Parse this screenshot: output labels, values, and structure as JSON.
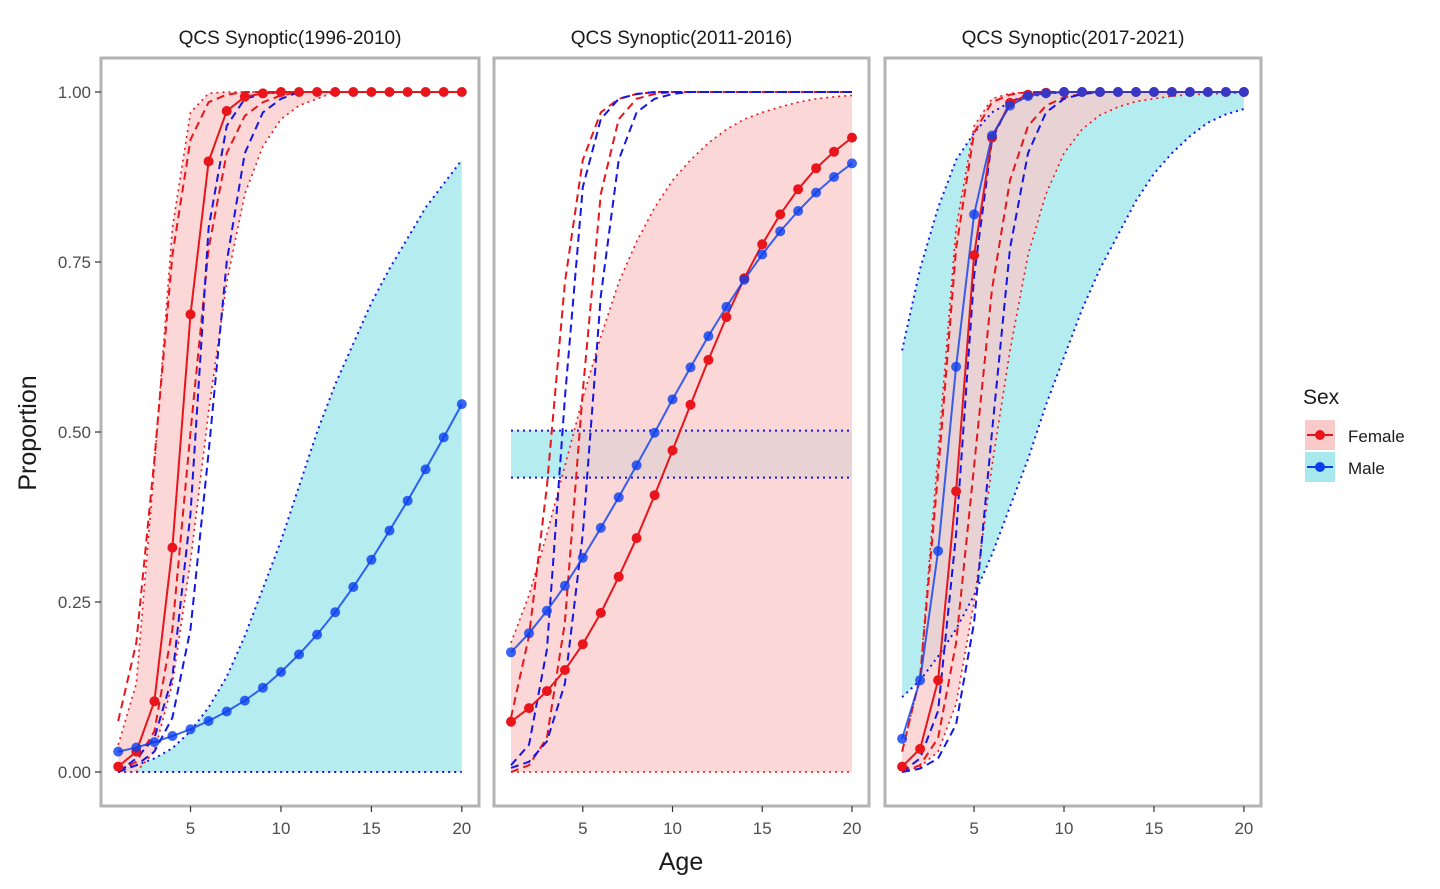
{
  "chart_data": {
    "type": "line",
    "xlabel": "Age",
    "ylabel": "Proportion",
    "xlim": [
      1,
      20
    ],
    "ylim": [
      0,
      1
    ],
    "x_ticks": [
      5,
      10,
      15,
      20
    ],
    "y_ticks": [
      0.0,
      0.25,
      0.5,
      0.75,
      1.0
    ],
    "y_tick_labels": [
      "0.00",
      "0.25",
      "0.50",
      "0.75",
      "1.00"
    ],
    "grid": false,
    "legend": {
      "title": "Sex",
      "position": "right",
      "entries": [
        {
          "label": "Female",
          "line_color": "#e8161c",
          "fill_color": "#f8c8c8"
        },
        {
          "label": "Male",
          "line_color": "#0a3ff0",
          "fill_color": "#a6e6ea"
        }
      ]
    },
    "colors": {
      "female_line": "#e8161c",
      "female_dash": "#e8161c",
      "female_fill": "#f9caca",
      "male_line": "#0a3ff0",
      "male_dash": "#1515e6",
      "male_fill": "#a8e9ed",
      "overlap_fill": "#b3c8c8",
      "panel_border": "#b3b3b3"
    },
    "panels": [
      {
        "title": "QCS Synoptic(1996-2010)",
        "x": [
          1,
          2,
          3,
          4,
          5,
          6,
          7,
          8,
          9,
          10,
          11,
          12,
          13,
          14,
          15,
          16,
          17,
          18,
          19,
          20
        ],
        "female": {
          "y": [
            0.008,
            0.03,
            0.104,
            0.33,
            0.673,
            0.898,
            0.972,
            0.993,
            0.998,
            1.0,
            1.0,
            1.0,
            1.0,
            1.0,
            1.0,
            1.0,
            1.0,
            1.0,
            1.0,
            1.0
          ],
          "band_lower": [
            0.0,
            0.0,
            0.03,
            0.13,
            0.31,
            0.53,
            0.72,
            0.85,
            0.92,
            0.96,
            0.98,
            0.99,
            1.0,
            1.0,
            1.0,
            1.0,
            1.0,
            1.0,
            1.0,
            1.0
          ],
          "band_upper": [
            0.04,
            0.13,
            0.45,
            0.8,
            0.97,
            0.998,
            1.0,
            1.0,
            1.0,
            1.0,
            1.0,
            1.0,
            1.0,
            1.0,
            1.0,
            1.0,
            1.0,
            1.0,
            1.0,
            1.0
          ],
          "dashed_lower": [
            0.0,
            0.015,
            0.06,
            0.21,
            0.5,
            0.77,
            0.91,
            0.965,
            0.985,
            0.995,
            1.0,
            1.0,
            1.0,
            1.0,
            1.0,
            1.0,
            1.0,
            1.0,
            1.0,
            1.0
          ],
          "dashed_upper": [
            0.075,
            0.19,
            0.46,
            0.76,
            0.93,
            0.985,
            0.996,
            1.0,
            1.0,
            1.0,
            1.0,
            1.0,
            1.0,
            1.0,
            1.0,
            1.0,
            1.0,
            1.0,
            1.0,
            1.0
          ]
        },
        "male": {
          "y": [
            0.03,
            0.036,
            0.044,
            0.053,
            0.063,
            0.075,
            0.089,
            0.105,
            0.124,
            0.147,
            0.173,
            0.202,
            0.235,
            0.272,
            0.312,
            0.355,
            0.399,
            0.445,
            0.492,
            0.541
          ],
          "band_lower": [
            0.0,
            0.0,
            0.0,
            0.0,
            0.0,
            0.0,
            0.0,
            0.0,
            0.0,
            0.0,
            0.0,
            0.0,
            0.0,
            0.0,
            0.0,
            0.0,
            0.0,
            0.0,
            0.0,
            0.0
          ],
          "band_upper": [
            0.005,
            0.01,
            0.02,
            0.035,
            0.06,
            0.095,
            0.14,
            0.2,
            0.27,
            0.34,
            0.42,
            0.5,
            0.57,
            0.63,
            0.69,
            0.74,
            0.785,
            0.83,
            0.865,
            0.9
          ],
          "dashed_lower": [
            0.0,
            0.01,
            0.03,
            0.08,
            0.21,
            0.47,
            0.75,
            0.91,
            0.97,
            0.99,
            1.0,
            1.0,
            1.0,
            1.0,
            1.0,
            1.0,
            1.0,
            1.0,
            1.0,
            1.0
          ],
          "dashed_upper": [
            0.0,
            0.02,
            0.05,
            0.14,
            0.38,
            0.8,
            0.95,
            0.99,
            0.997,
            1.0,
            1.0,
            1.0,
            1.0,
            1.0,
            1.0,
            1.0,
            1.0,
            1.0,
            1.0,
            1.0
          ]
        }
      },
      {
        "title": "QCS Synoptic(2011-2016)",
        "x": [
          1,
          2,
          3,
          4,
          5,
          6,
          7,
          8,
          9,
          10,
          11,
          12,
          13,
          14,
          15,
          16,
          17,
          18,
          19,
          20
        ],
        "female": {
          "y": [
            0.074,
            0.094,
            0.119,
            0.15,
            0.188,
            0.234,
            0.287,
            0.344,
            0.407,
            0.473,
            0.54,
            0.606,
            0.669,
            0.726,
            0.776,
            0.82,
            0.857,
            0.888,
            0.912,
            0.933
          ],
          "band_lower": [
            0.0,
            0.0,
            0.0,
            0.0,
            0.0,
            0.0,
            0.0,
            0.0,
            0.0,
            0.0,
            0.0,
            0.0,
            0.0,
            0.0,
            0.0,
            0.0,
            0.0,
            0.0,
            0.0,
            0.0
          ],
          "band_upper": [
            0.19,
            0.26,
            0.35,
            0.45,
            0.55,
            0.64,
            0.72,
            0.78,
            0.83,
            0.87,
            0.9,
            0.925,
            0.945,
            0.96,
            0.97,
            0.978,
            0.985,
            0.99,
            0.993,
            0.995
          ],
          "dashed_lower": [
            0.0,
            0.01,
            0.05,
            0.22,
            0.56,
            0.85,
            0.96,
            0.99,
            0.997,
            1.0,
            1.0,
            1.0,
            1.0,
            1.0,
            1.0,
            1.0,
            1.0,
            1.0,
            1.0,
            1.0
          ],
          "dashed_upper": [
            0.08,
            0.2,
            0.42,
            0.72,
            0.9,
            0.97,
            0.99,
            0.997,
            1.0,
            1.0,
            1.0,
            1.0,
            1.0,
            1.0,
            1.0,
            1.0,
            1.0,
            1.0,
            1.0,
            1.0
          ]
        },
        "male": {
          "y": [
            0.176,
            0.204,
            0.237,
            0.274,
            0.315,
            0.359,
            0.404,
            0.451,
            0.499,
            0.548,
            0.595,
            0.641,
            0.684,
            0.724,
            0.761,
            0.795,
            0.825,
            0.852,
            0.875,
            0.895
          ],
          "band_lower": [
            0.433,
            0.433,
            0.433,
            0.433,
            0.433,
            0.433,
            0.433,
            0.433,
            0.433,
            0.433,
            0.433,
            0.433,
            0.433,
            0.433,
            0.433,
            0.433,
            0.433,
            0.433,
            0.433,
            0.433
          ],
          "band_upper": [
            0.502,
            0.502,
            0.502,
            0.502,
            0.502,
            0.502,
            0.502,
            0.502,
            0.502,
            0.502,
            0.502,
            0.502,
            0.502,
            0.502,
            0.502,
            0.502,
            0.502,
            0.502,
            0.502,
            0.502
          ],
          "dashed_lower": [
            0.006,
            0.015,
            0.045,
            0.13,
            0.35,
            0.7,
            0.9,
            0.97,
            0.99,
            0.997,
            1.0,
            1.0,
            1.0,
            1.0,
            1.0,
            1.0,
            1.0,
            1.0,
            1.0,
            1.0
          ],
          "dashed_upper": [
            0.01,
            0.04,
            0.18,
            0.55,
            0.86,
            0.96,
            0.99,
            0.997,
            1.0,
            1.0,
            1.0,
            1.0,
            1.0,
            1.0,
            1.0,
            1.0,
            1.0,
            1.0,
            1.0,
            1.0
          ]
        }
      },
      {
        "title": "QCS Synoptic(2017-2021)",
        "x": [
          1,
          2,
          3,
          4,
          5,
          6,
          7,
          8,
          9,
          10,
          11,
          12,
          13,
          14,
          15,
          16,
          17,
          18,
          19,
          20
        ],
        "female": {
          "y": [
            0.008,
            0.034,
            0.135,
            0.413,
            0.76,
            0.933,
            0.984,
            0.996,
            0.999,
            1.0,
            1.0,
            1.0,
            1.0,
            1.0,
            1.0,
            1.0,
            1.0,
            1.0,
            1.0,
            1.0
          ],
          "band_lower": [
            0.0,
            0.008,
            0.03,
            0.1,
            0.25,
            0.45,
            0.62,
            0.76,
            0.85,
            0.91,
            0.945,
            0.966,
            0.978,
            0.986,
            0.99,
            0.994,
            0.996,
            0.997,
            0.998,
            0.999
          ],
          "band_upper": [
            0.03,
            0.14,
            0.47,
            0.8,
            0.95,
            0.99,
            0.998,
            1.0,
            1.0,
            1.0,
            1.0,
            1.0,
            1.0,
            1.0,
            1.0,
            1.0,
            1.0,
            1.0,
            1.0,
            1.0
          ],
          "dashed_lower": [
            0.0,
            0.01,
            0.05,
            0.19,
            0.45,
            0.71,
            0.87,
            0.95,
            0.98,
            0.992,
            0.997,
            1.0,
            1.0,
            1.0,
            1.0,
            1.0,
            1.0,
            1.0,
            1.0,
            1.0
          ],
          "dashed_upper": [
            0.03,
            0.14,
            0.44,
            0.77,
            0.94,
            0.985,
            0.996,
            1.0,
            1.0,
            1.0,
            1.0,
            1.0,
            1.0,
            1.0,
            1.0,
            1.0,
            1.0,
            1.0,
            1.0,
            1.0
          ]
        },
        "male": {
          "y": [
            0.049,
            0.135,
            0.325,
            0.596,
            0.82,
            0.936,
            0.98,
            0.994,
            0.998,
            1.0,
            1.0,
            1.0,
            1.0,
            1.0,
            1.0,
            1.0,
            1.0,
            1.0,
            1.0,
            1.0
          ],
          "band_lower": [
            0.11,
            0.135,
            0.17,
            0.21,
            0.26,
            0.32,
            0.39,
            0.46,
            0.54,
            0.61,
            0.68,
            0.74,
            0.79,
            0.84,
            0.88,
            0.91,
            0.935,
            0.955,
            0.967,
            0.975
          ],
          "band_upper": [
            0.62,
            0.74,
            0.83,
            0.9,
            0.94,
            0.97,
            0.985,
            0.993,
            0.997,
            1.0,
            1.0,
            1.0,
            1.0,
            1.0,
            1.0,
            1.0,
            1.0,
            1.0,
            1.0,
            1.0
          ],
          "dashed_lower": [
            0.0,
            0.005,
            0.02,
            0.07,
            0.22,
            0.5,
            0.77,
            0.91,
            0.97,
            0.99,
            0.997,
            1.0,
            1.0,
            1.0,
            1.0,
            1.0,
            1.0,
            1.0,
            1.0,
            1.0
          ],
          "dashed_upper": [
            0.0,
            0.02,
            0.09,
            0.35,
            0.73,
            0.93,
            0.985,
            0.997,
            1.0,
            1.0,
            1.0,
            1.0,
            1.0,
            1.0,
            1.0,
            1.0,
            1.0,
            1.0,
            1.0,
            1.0
          ]
        }
      }
    ]
  }
}
